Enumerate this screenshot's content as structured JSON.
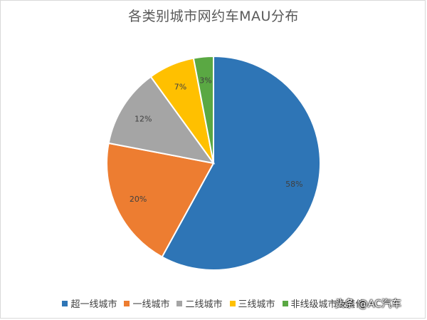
{
  "chart_data": {
    "type": "pie",
    "title": "各类别城市网约车MAU分布",
    "slices": [
      {
        "label": "超一线城市",
        "value": 58,
        "display": "58%",
        "color": "#2e75b6"
      },
      {
        "label": "一线城市",
        "value": 20,
        "display": "20%",
        "color": "#ed7d31"
      },
      {
        "label": "二线城市",
        "value": 12,
        "display": "12%",
        "color": "#a5a5a5"
      },
      {
        "label": "三线城市",
        "value": 7,
        "display": "7%",
        "color": "#ffc000"
      },
      {
        "label": "非线级城市及其他",
        "value": 3,
        "display": "3%",
        "color": "#5aa843"
      }
    ],
    "legend_position": "bottom",
    "start": "top, clockwise"
  },
  "watermark": {
    "text": "头条 @AC汽车",
    "logo": "AC"
  }
}
